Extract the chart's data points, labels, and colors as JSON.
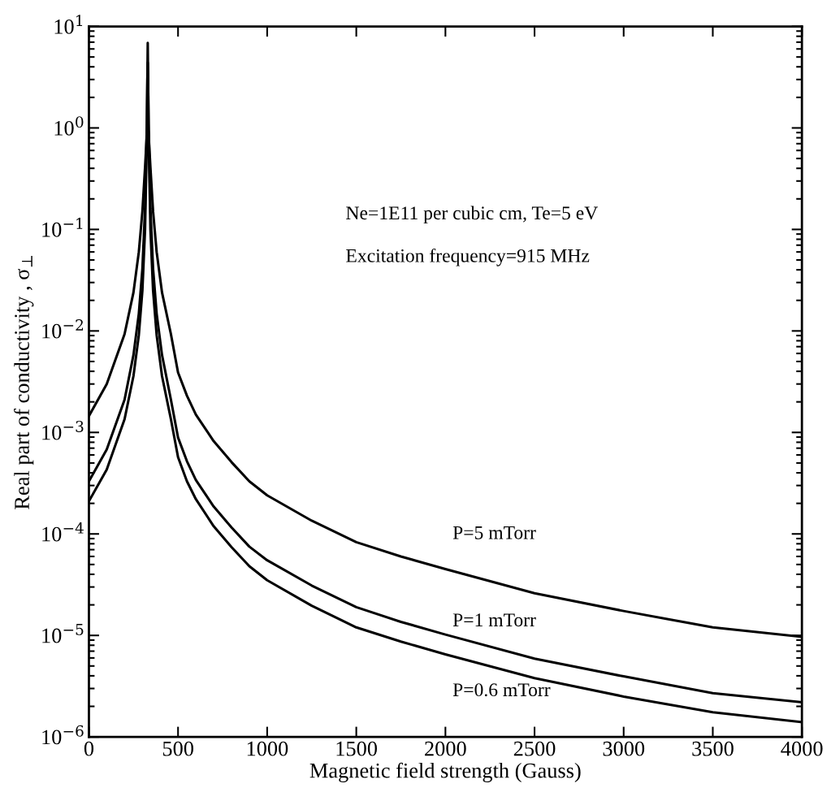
{
  "chart_data": {
    "type": "line",
    "xlabel": "Magnetic field strength (Gauss)",
    "ylabel": "Real part of conductivity , σ$_{⊥}$",
    "annotations": [
      "Ne=1E11 per cubic cm, Te=5 eV",
      "Excitation frequency=915 MHz"
    ],
    "x": [
      0,
      100,
      200,
      250,
      280,
      300,
      315,
      325,
      328,
      330,
      332,
      335,
      345,
      360,
      380,
      410,
      460,
      500,
      550,
      600,
      700,
      800,
      900,
      1000,
      1250,
      1500,
      1750,
      2000,
      2500,
      3000,
      3500,
      4000
    ],
    "series": [
      {
        "name": "P=5 mTorr",
        "color": "#000000",
        "values": [
          0.00145,
          0.003,
          0.0093,
          0.024,
          0.06,
          0.15,
          0.41,
          0.86,
          0.98,
          1.0,
          0.98,
          0.86,
          0.41,
          0.15,
          0.06,
          0.024,
          0.0093,
          0.0039,
          0.0023,
          0.0015,
          0.00082,
          0.00051,
          0.00033,
          0.00024,
          0.000135,
          8.3e-05,
          6e-05,
          4.5e-05,
          2.6e-05,
          1.74e-05,
          1.2e-05,
          9.7e-06
        ]
      },
      {
        "name": "P=1 mTorr",
        "color": "#000000",
        "values": [
          0.00033,
          0.00068,
          0.0021,
          0.0058,
          0.0148,
          0.041,
          0.16,
          1.1,
          3.0,
          4.4,
          3.0,
          1.1,
          0.16,
          0.041,
          0.0148,
          0.0058,
          0.0021,
          0.00089,
          0.00052,
          0.00034,
          0.000186,
          0.000116,
          7.5e-05,
          5.5e-05,
          3.1e-05,
          1.9e-05,
          1.36e-05,
          1.02e-05,
          5.9e-06,
          3.95e-06,
          2.7e-06,
          2.2e-06
        ]
      },
      {
        "name": "P=0.6 mTorr",
        "color": "#000000",
        "values": [
          0.00021,
          0.00043,
          0.00135,
          0.0036,
          0.0091,
          0.025,
          0.1,
          0.81,
          3.1,
          6.9,
          3.1,
          0.81,
          0.1,
          0.025,
          0.0091,
          0.0036,
          0.00135,
          0.00057,
          0.00033,
          0.00022,
          0.000119,
          7.4e-05,
          4.8e-05,
          3.5e-05,
          1.96e-05,
          1.2e-05,
          8.7e-06,
          6.5e-06,
          3.8e-06,
          2.5e-06,
          1.75e-06,
          1.4e-06
        ]
      }
    ],
    "log": "y",
    "xlim": [
      0,
      4000
    ],
    "xticks": [
      0,
      500,
      1000,
      1500,
      2000,
      2500,
      3000,
      3500,
      4000
    ],
    "ylim": [
      1e-06,
      10
    ],
    "yticks": [
      {
        "value": 1e-06,
        "label": "10$^{−6}$"
      },
      {
        "value": 1e-05,
        "label": "10$^{−5}$"
      },
      {
        "value": 0.0001,
        "label": "10$^{−4}$"
      },
      {
        "value": 0.001,
        "label": "10$^{−3}$"
      },
      {
        "value": 0.01,
        "label": "10$^{−2}$"
      },
      {
        "value": 0.1,
        "label": "10$^{−1}$"
      },
      {
        "value": 1,
        "label": "10$^{0}$"
      },
      {
        "value": 10,
        "label": "10$^{1}$"
      }
    ],
    "grid": false,
    "legend": false,
    "line_style": "solid",
    "marker": "none"
  }
}
